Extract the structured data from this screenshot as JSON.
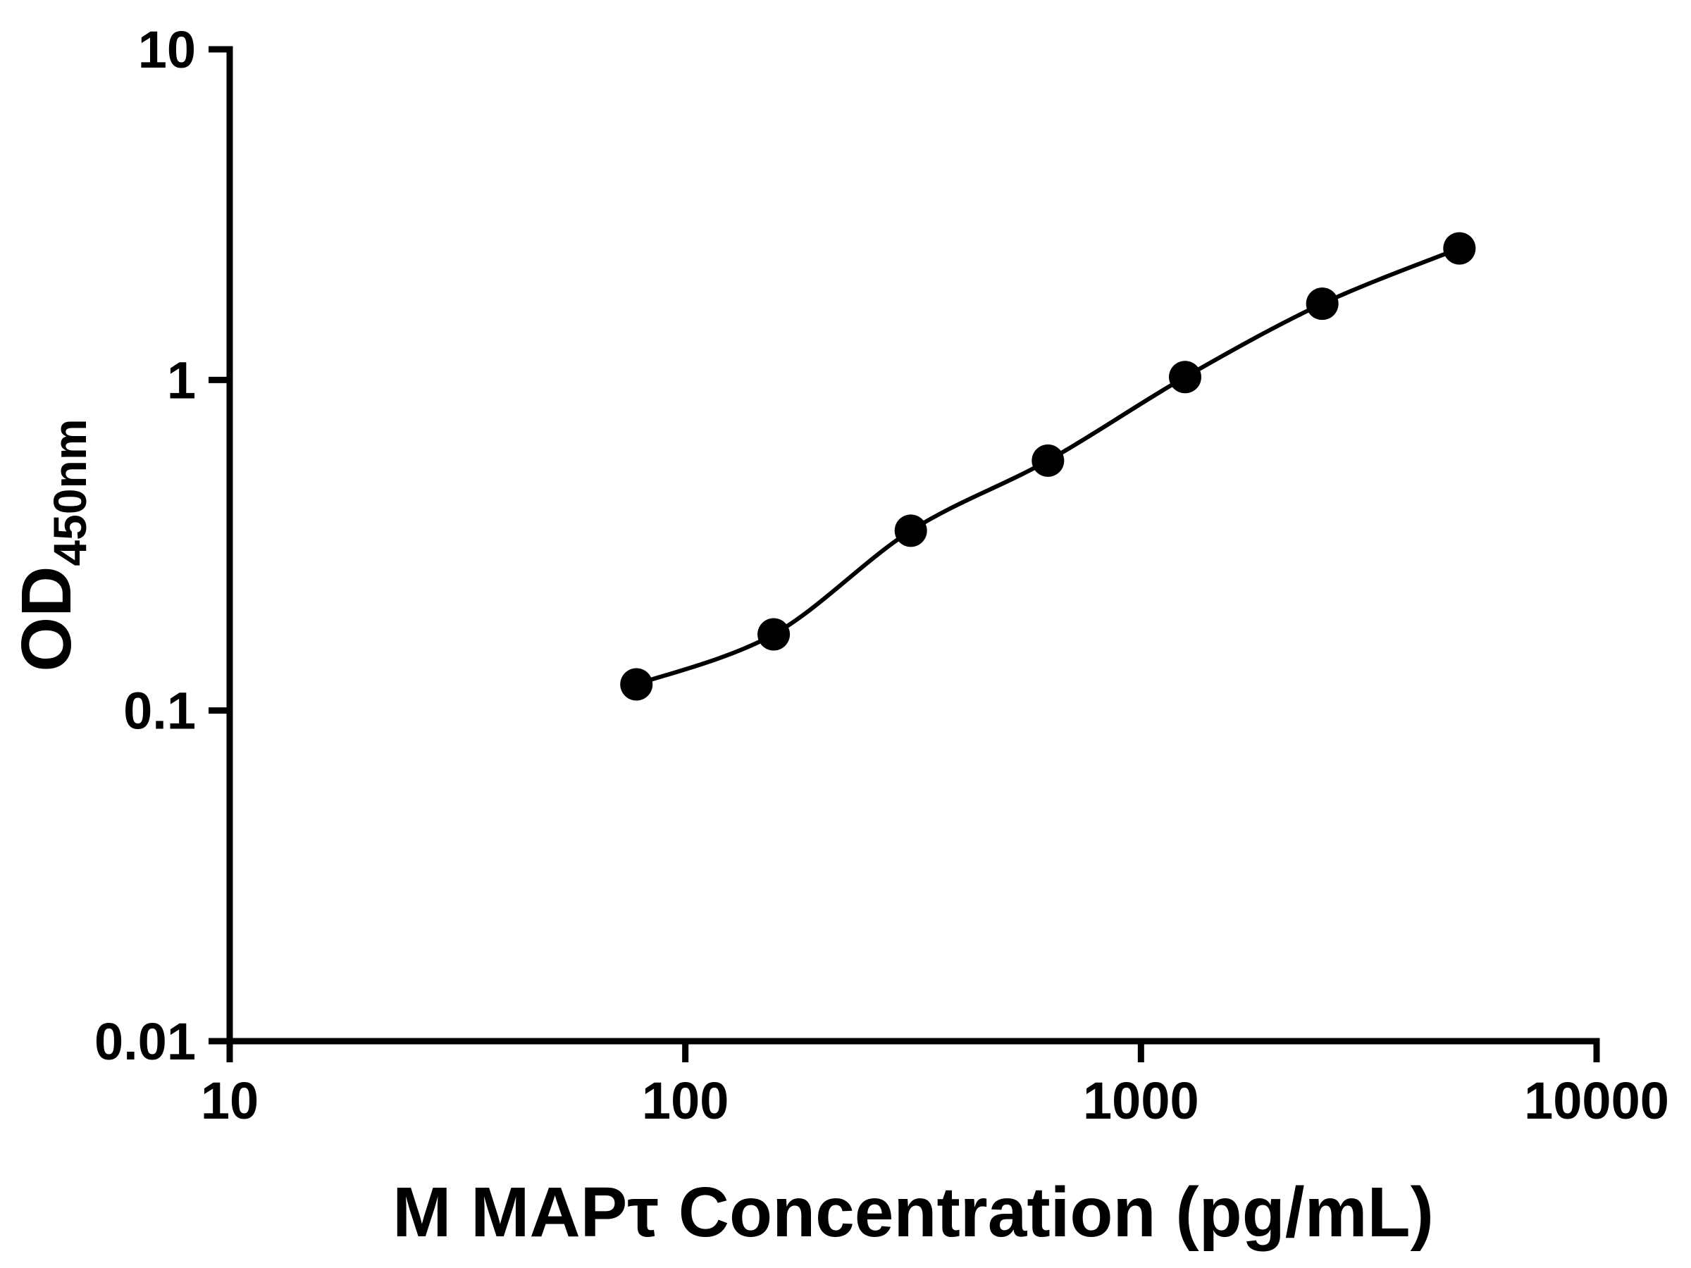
{
  "chart_data": {
    "type": "scatter",
    "subtype": "standard-curve-log-log",
    "title": "",
    "xlabel": "M MAPτ Concentration (pg/mL)",
    "ylabel_main": "OD",
    "ylabel_sub": "450nm",
    "x_scale": "log",
    "y_scale": "log",
    "xlim": [
      10,
      10000
    ],
    "ylim": [
      0.01,
      10
    ],
    "x": [
      78.1,
      156.3,
      312.5,
      625,
      1250,
      2500,
      5000
    ],
    "y": [
      0.12,
      0.17,
      0.35,
      0.57,
      1.02,
      1.7,
      2.5
    ],
    "x_ticks": [
      {
        "value": 10,
        "label": "10"
      },
      {
        "value": 100,
        "label": "100"
      },
      {
        "value": 1000,
        "label": "1000"
      },
      {
        "value": 10000,
        "label": "10000"
      }
    ],
    "y_ticks": [
      {
        "value": 0.01,
        "label": "0.01"
      },
      {
        "value": 0.1,
        "label": "0.1"
      },
      {
        "value": 1,
        "label": "1"
      },
      {
        "value": 10,
        "label": "10"
      }
    ],
    "grid": false,
    "legend": "none",
    "marker_color": "#000000",
    "line_color": "#000000",
    "axis_color": "#000000",
    "background_color": "#ffffff"
  }
}
